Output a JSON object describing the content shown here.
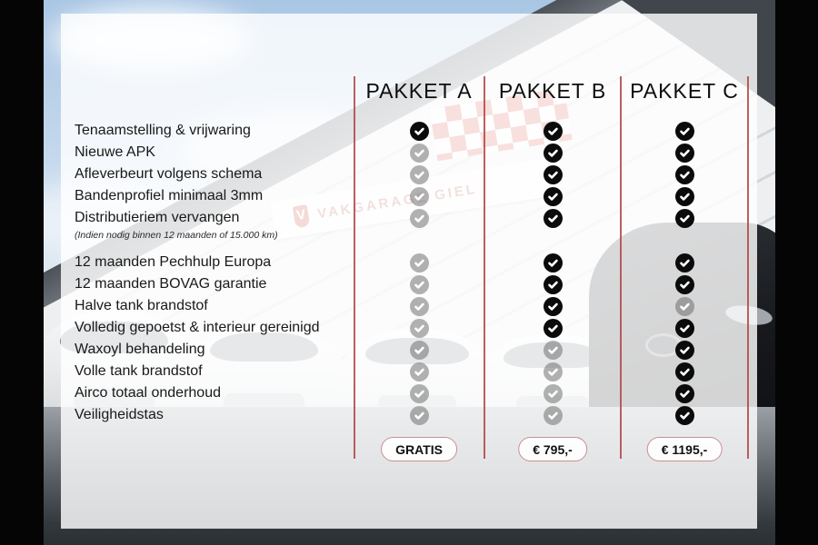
{
  "packages": [
    {
      "name": "PAKKET A",
      "price": "GRATIS"
    },
    {
      "name": "PAKKET B",
      "price": "€ 795,-"
    },
    {
      "name": "PAKKET C",
      "price": "€ 1195,-"
    }
  ],
  "features": [
    {
      "label": "Tenaamstelling & vrijwaring",
      "included": [
        true,
        true,
        true
      ],
      "group": 1
    },
    {
      "label": "Nieuwe APK",
      "included": [
        false,
        true,
        true
      ],
      "group": 1
    },
    {
      "label": "Afleverbeurt volgens schema",
      "included": [
        false,
        true,
        true
      ],
      "group": 1
    },
    {
      "label": "Bandenprofiel minimaal 3mm",
      "included": [
        false,
        true,
        true
      ],
      "group": 1
    },
    {
      "label": "Distributieriem vervangen",
      "note": "(Indien nodig binnen 12 maanden of 15.000 km)",
      "included": [
        false,
        true,
        true
      ],
      "group": 1
    },
    {
      "label": "12 maanden Pechhulp Europa",
      "included": [
        false,
        true,
        true
      ],
      "group": 2
    },
    {
      "label": "12 maanden BOVAG garantie",
      "included": [
        false,
        true,
        true
      ],
      "group": 2
    },
    {
      "label": "Halve tank brandstof",
      "included": [
        false,
        true,
        false
      ],
      "group": 2
    },
    {
      "label": "Volledig gepoetst & interieur gereinigd",
      "included": [
        false,
        true,
        true
      ],
      "group": 2
    },
    {
      "label": "Waxoyl behandeling",
      "included": [
        false,
        false,
        true
      ],
      "group": 2
    },
    {
      "label": "Volle tank brandstof",
      "included": [
        false,
        false,
        true
      ],
      "group": 2
    },
    {
      "label": "Airco totaal onderhoud",
      "included": [
        false,
        false,
        true
      ],
      "group": 2
    },
    {
      "label": "Veiligheidstas",
      "included": [
        false,
        false,
        true
      ],
      "group": 2
    }
  ],
  "background": {
    "brand_text": "VAKGARAGE GIEL",
    "brand_logo_letter": "V"
  },
  "colors": {
    "divider_red": "#b14f4f",
    "pill_border_red": "#c98f8f",
    "check_included": "#0b0b0b",
    "check_excluded": "#a6a6a6",
    "checker_flag_red": "#d84b3f"
  }
}
